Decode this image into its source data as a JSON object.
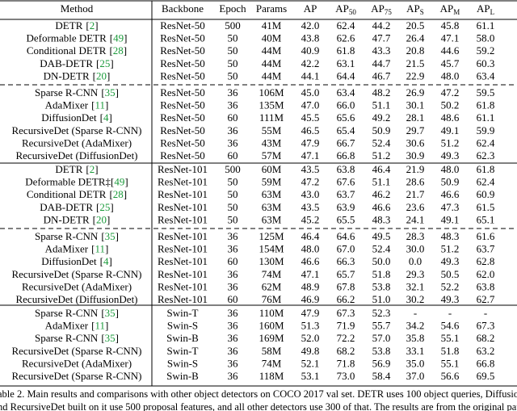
{
  "table": {
    "header": [
      {
        "text": "Method"
      },
      {
        "text": "Backbone"
      },
      {
        "text": "Epoch"
      },
      {
        "text": "Params"
      },
      {
        "text": "AP"
      },
      {
        "text": "AP",
        "sub": "50"
      },
      {
        "text": "AP",
        "sub": "75"
      },
      {
        "text": "AP",
        "sub": "S"
      },
      {
        "text": "AP",
        "sub": "M"
      },
      {
        "text": "AP",
        "sub": "L"
      }
    ],
    "groups": [
      {
        "sections": [
          [
            {
              "method": "DETR",
              "cite": "[2]",
              "cells": [
                "ResNet-50",
                "500",
                "41M",
                "42.0",
                "62.4",
                "44.2",
                "20.5",
                "45.8",
                "61.1"
              ]
            },
            {
              "method": "Deformable DETR",
              "cite": "[49]",
              "cells": [
                "ResNet-50",
                "50",
                "40M",
                "43.8",
                "62.6",
                "47.7",
                "26.4",
                "47.1",
                "58.0"
              ]
            },
            {
              "method": "Conditional DETR",
              "cite": "[28]",
              "cells": [
                "ResNet-50",
                "50",
                "44M",
                "40.9",
                "61.8",
                "43.3",
                "20.8",
                "44.6",
                "59.2"
              ]
            },
            {
              "method": "DAB-DETR",
              "cite": "[25]",
              "cells": [
                "ResNet-50",
                "50",
                "44M",
                "42.2",
                "63.1",
                "44.7",
                "21.5",
                "45.7",
                "60.3"
              ]
            },
            {
              "method": "DN-DETR",
              "cite": "[20]",
              "cells": [
                "ResNet-50",
                "50",
                "44M",
                "44.1",
                "64.4",
                "46.7",
                "22.9",
                "48.0",
                "63.4"
              ]
            }
          ],
          [
            {
              "method": "Sparse R-CNN",
              "cite": "[35]",
              "cells": [
                "ResNet-50",
                "36",
                "106M",
                "45.0",
                "63.4",
                "48.2",
                "26.9",
                "47.2",
                "59.5"
              ]
            },
            {
              "method": "AdaMixer",
              "cite": "[11]",
              "cells": [
                "ResNet-50",
                "36",
                "135M",
                "47.0",
                "66.0",
                "51.1",
                "30.1",
                "50.2",
                "61.8"
              ]
            },
            {
              "method": "DiffusionDet",
              "cite": "[4]",
              "cells": [
                "ResNet-50",
                "60",
                "111M",
                "45.5",
                "65.6",
                "49.2",
                "28.1",
                "48.6",
                "61.1"
              ]
            },
            {
              "method": "RecursiveDet (Sparse R-CNN)",
              "cells": [
                "ResNet-50",
                "36",
                "55M",
                "46.5",
                "65.4",
                "50.9",
                "29.7",
                "49.1",
                "59.9"
              ]
            },
            {
              "method": "RecursiveDet (AdaMixer)",
              "cells": [
                "ResNet-50",
                "36",
                "43M",
                "47.9",
                "66.7",
                "52.4",
                "30.6",
                "51.2",
                "62.4"
              ]
            },
            {
              "method": "RecursiveDet (DiffusionDet)",
              "cells": [
                "ResNet-50",
                "60",
                "57M",
                "47.1",
                "66.8",
                "51.2",
                "30.9",
                "49.3",
                "62.3"
              ]
            }
          ]
        ]
      },
      {
        "sections": [
          [
            {
              "method": "DETR",
              "cite": "[2]",
              "cells": [
                "ResNet-101",
                "500",
                "60M",
                "43.5",
                "63.8",
                "46.4",
                "21.9",
                "48.0",
                "61.8"
              ]
            },
            {
              "method": "Deformable DETR‡",
              "cite": "[49]",
              "cells": [
                "ResNet-101",
                "50",
                "59M",
                "47.2",
                "67.6",
                "51.1",
                "28.6",
                "50.9",
                "62.4"
              ]
            },
            {
              "method": "Conditional DETR",
              "cite": "[28]",
              "cells": [
                "ResNet-101",
                "50",
                "63M",
                "43.0",
                "63.7",
                "46.2",
                "21.7",
                "46.6",
                "60.9"
              ]
            },
            {
              "method": "DAB-DETR",
              "cite": "[25]",
              "cells": [
                "ResNet-101",
                "50",
                "63M",
                "43.5",
                "63.9",
                "46.6",
                "23.6",
                "47.3",
                "61.5"
              ]
            },
            {
              "method": "DN-DETR",
              "cite": "[20]",
              "cells": [
                "ResNet-101",
                "50",
                "63M",
                "45.2",
                "65.5",
                "48.3",
                "24.1",
                "49.1",
                "65.1"
              ]
            }
          ],
          [
            {
              "method": "Sparse R-CNN",
              "cite": "[35]",
              "cells": [
                "ResNet-101",
                "36",
                "125M",
                "46.4",
                "64.6",
                "49.5",
                "28.3",
                "48.3",
                "61.6"
              ]
            },
            {
              "method": "AdaMixer",
              "cite": "[11]",
              "cells": [
                "ResNet-101",
                "36",
                "154M",
                "48.0",
                "67.0",
                "52.4",
                "30.0",
                "51.2",
                "63.7"
              ]
            },
            {
              "method": "DiffusionDet",
              "cite": "[4]",
              "cells": [
                "ResNet-101",
                "60",
                "130M",
                "46.6",
                "66.3",
                "50.0",
                "0.0",
                "49.3",
                "62.8"
              ]
            },
            {
              "method": "RecursiveDet (Sparse R-CNN)",
              "cells": [
                "ResNet-101",
                "36",
                "74M",
                "47.1",
                "65.7",
                "51.8",
                "29.3",
                "50.5",
                "62.0"
              ]
            },
            {
              "method": "RecursiveDet (AdaMixer)",
              "cells": [
                "ResNet-101",
                "36",
                "62M",
                "48.9",
                "67.8",
                "53.8",
                "32.1",
                "52.2",
                "63.8"
              ]
            },
            {
              "method": "RecursiveDet (DiffusionDet)",
              "cells": [
                "ResNet-101",
                "60",
                "76M",
                "46.9",
                "66.2",
                "51.0",
                "30.2",
                "49.3",
                "62.7"
              ]
            }
          ]
        ]
      },
      {
        "sections": [
          [
            {
              "method": "Sparse R-CNN",
              "cite": "[35]",
              "cells": [
                "Swin-T",
                "36",
                "110M",
                "47.9",
                "67.3",
                "52.3",
                "-",
                "-",
                "-"
              ]
            },
            {
              "method": "AdaMixer",
              "cite": "[11]",
              "cells": [
                "Swin-S",
                "36",
                "160M",
                "51.3",
                "71.9",
                "55.7",
                "34.2",
                "54.6",
                "67.3"
              ]
            },
            {
              "method": "Sparse R-CNN",
              "cite": "[35]",
              "cells": [
                "Swin-B",
                "36",
                "169M",
                "52.0",
                "72.2",
                "57.0",
                "35.8",
                "55.1",
                "68.2"
              ]
            },
            {
              "method": "RecursiveDet (Sparse R-CNN)",
              "cells": [
                "Swin-T",
                "36",
                "58M",
                "49.8",
                "68.2",
                "53.8",
                "33.1",
                "51.8",
                "63.2"
              ]
            },
            {
              "method": "RecursiveDet (AdaMixer)",
              "cells": [
                "Swin-S",
                "36",
                "74M",
                "52.1",
                "71.8",
                "56.9",
                "35.0",
                "55.1",
                "66.8"
              ]
            },
            {
              "method": "RecursiveDet (Sparse R-CNN)",
              "cells": [
                "Swin-B",
                "36",
                "118M",
                "53.1",
                "73.0",
                "58.4",
                "37.0",
                "56.6",
                "69.5"
              ]
            }
          ]
        ]
      }
    ]
  },
  "caption": [
    "able 2. Main results and comparisons with other object detectors on COCO 2017 val set. DETR uses 100 object queries, DiffusionDet",
    "nd RecursiveDet built on it use 500 proposal features, and all other detectors use 300 of that. The results are from the original paper"
  ]
}
